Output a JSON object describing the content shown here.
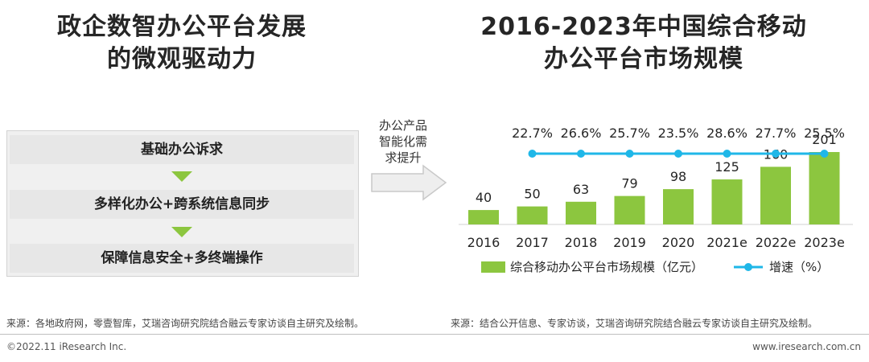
{
  "left": {
    "title_line1": "政企数智办公平台发展",
    "title_line2": "的微观驱动力",
    "steps": [
      "基础办公诉求",
      "多样化办公+跨系统信息同步",
      "保障信息安全+多终端操作"
    ]
  },
  "middle": {
    "arrow_line1": "办公产品",
    "arrow_line2": "智能化需",
    "arrow_line3": "求提升"
  },
  "right": {
    "title_line1": "2016-2023年中国综合移动",
    "title_line2": "办公平台市场规模"
  },
  "chart_data": {
    "type": "bar",
    "categories": [
      "2016",
      "2017",
      "2018",
      "2019",
      "2020",
      "2021e",
      "2022e",
      "2023e"
    ],
    "series": [
      {
        "name": "综合移动办公平台市场规模（亿元）",
        "type": "bar",
        "values": [
          40,
          50,
          63,
          79,
          98,
          125,
          160,
          201
        ]
      },
      {
        "name": "增速（%）",
        "type": "line",
        "values": [
          null,
          22.7,
          26.6,
          25.7,
          23.5,
          28.6,
          27.7,
          25.5
        ]
      }
    ],
    "growth_labels": [
      "22.7%",
      "26.6%",
      "25.7%",
      "23.5%",
      "28.6%",
      "27.7%",
      "25.5%"
    ],
    "bar_color": "#8cc63f",
    "line_color": "#1fb7e8",
    "legend_position": "bottom"
  },
  "sources": {
    "left": "来源：各地政府网，零壹智库，艾瑞咨询研究院结合融云专家访谈自主研究及绘制。",
    "right": "来源：结合公开信息、专家访谈，艾瑞咨询研究院结合融云专家访谈自主研究及绘制。"
  },
  "footer": {
    "copyright": "©2022.11 iResearch Inc.",
    "url": "www.iresearch.com.cn"
  }
}
